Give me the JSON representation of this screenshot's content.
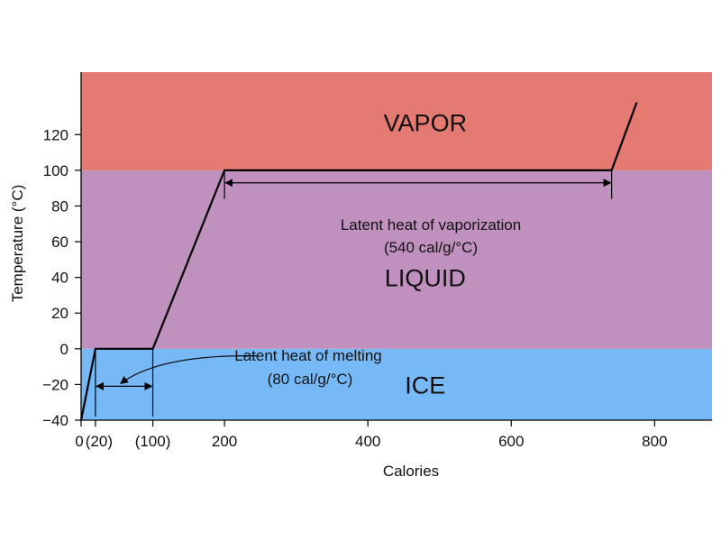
{
  "chart_data": {
    "type": "line",
    "title": "",
    "xlabel": "Calories",
    "ylabel": "Temperature (°C)",
    "xlim": [
      0,
      880
    ],
    "ylim": [
      -40,
      155
    ],
    "grid": false,
    "regions": [
      {
        "name": "ICE",
        "y_from": -40,
        "y_to": 0,
        "color": "#77b9f7"
      },
      {
        "name": "LIQUID",
        "y_from": 0,
        "y_to": 100,
        "color": "#c090bf"
      },
      {
        "name": "VAPOR",
        "y_from": 100,
        "y_to": 155,
        "color": "#e57a73"
      }
    ],
    "series": [
      {
        "x": [
          0,
          20,
          100,
          200,
          740,
          775
        ],
        "y": [
          -40,
          0,
          0,
          100,
          100,
          138
        ],
        "color": "#000000"
      }
    ],
    "x_ticks": [
      {
        "value": 0,
        "label": "0"
      },
      {
        "value": 20,
        "label": "(20)"
      },
      {
        "value": 100,
        "label": "(100)"
      },
      {
        "value": 200,
        "label": "200"
      },
      {
        "value": 400,
        "label": "400"
      },
      {
        "value": 600,
        "label": "600"
      },
      {
        "value": 800,
        "label": "800"
      }
    ],
    "y_ticks": [
      -40,
      -20,
      0,
      20,
      40,
      60,
      80,
      100,
      120
    ],
    "y_tick_labels": [
      "−40",
      "−20",
      "0",
      "20",
      "40",
      "60",
      "80",
      "100",
      "120"
    ],
    "annotations": {
      "vaporization": {
        "line1": "Latent heat of vaporization",
        "line2": "(540 cal/g/°C)",
        "x_from": 200,
        "x_to": 740,
        "y": 93
      },
      "melting": {
        "line1": "Latent heat of melting",
        "line2": "(80 cal/g/°C)",
        "x_from": 20,
        "x_to": 100,
        "y": -21
      }
    }
  }
}
